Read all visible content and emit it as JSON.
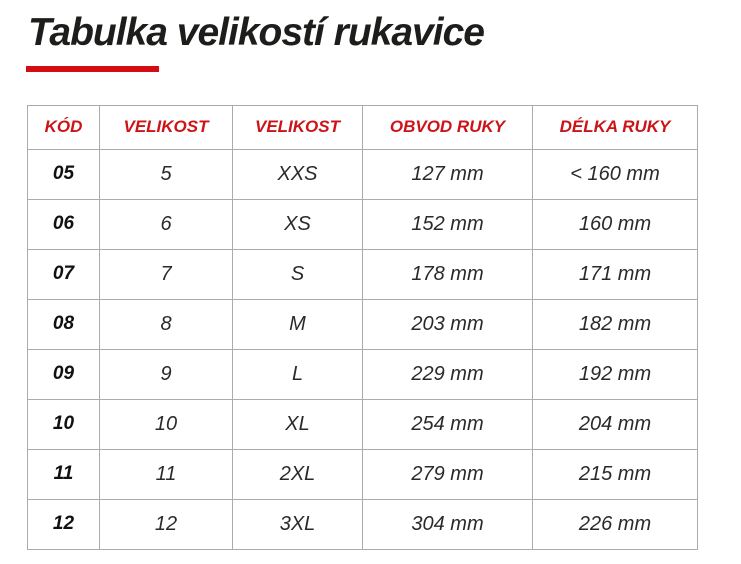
{
  "page": {
    "title": "Tabulka velikostí rukavice"
  },
  "colors": {
    "header_red": "#cc1418",
    "underline_red": "#d40d12",
    "border_gray": "#ababab",
    "title_black": "#1d1d1b"
  },
  "chart_data": {
    "type": "table",
    "title": "Tabulka velikostí rukavice",
    "columns": [
      "KÓD",
      "VELIKOST",
      "VELIKOST",
      "OBVOD RUKY",
      "DÉLKA RUKY"
    ],
    "rows": [
      [
        "05",
        "5",
        "XXS",
        "127 mm",
        "< 160 mm"
      ],
      [
        "06",
        "6",
        "XS",
        "152 mm",
        "160 mm"
      ],
      [
        "07",
        "7",
        "S",
        "178 mm",
        "171 mm"
      ],
      [
        "08",
        "8",
        "M",
        "203 mm",
        "182 mm"
      ],
      [
        "09",
        "9",
        "L",
        "229 mm",
        "192 mm"
      ],
      [
        "10",
        "10",
        "XL",
        "254 mm",
        "204 mm"
      ],
      [
        "11",
        "11",
        "2XL",
        "279 mm",
        "215 mm"
      ],
      [
        "12",
        "12",
        "3XL",
        "304 mm",
        "226 mm"
      ]
    ]
  }
}
